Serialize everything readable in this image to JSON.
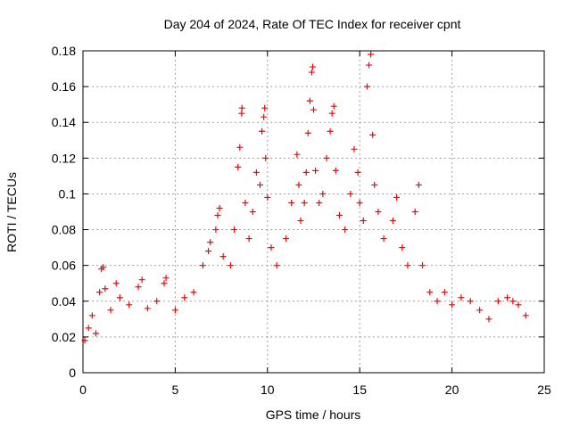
{
  "chart_data": {
    "type": "scatter",
    "title": "Day 204 of 2024, Rate Of TEC Index for receiver cpnt",
    "xlabel": "GPS time / hours",
    "ylabel": "ROTI / TECUs",
    "xlim": [
      0,
      25
    ],
    "ylim": [
      0,
      0.18
    ],
    "x_ticks": [
      0,
      5,
      10,
      15,
      20,
      25
    ],
    "x_tick_labels": [
      "0",
      "5",
      "10",
      "15",
      "20",
      "25"
    ],
    "y_ticks": [
      0,
      0.02,
      0.04,
      0.06,
      0.08,
      0.1,
      0.12,
      0.14,
      0.16,
      0.18
    ],
    "y_tick_labels": [
      "0",
      "0.02",
      "0.04",
      "0.06",
      "0.08",
      "0.1",
      "0.12",
      "0.14",
      "0.16",
      "0.18"
    ],
    "grid": true,
    "marker": "+",
    "series_color": "#ff0000",
    "series": [
      {
        "name": "ROTI",
        "points": [
          [
            0.1,
            0.018
          ],
          [
            0.3,
            0.025
          ],
          [
            0.5,
            0.032
          ],
          [
            0.7,
            0.022
          ],
          [
            0.9,
            0.045
          ],
          [
            1.0,
            0.058
          ],
          [
            1.1,
            0.059
          ],
          [
            1.2,
            0.047
          ],
          [
            1.5,
            0.035
          ],
          [
            1.8,
            0.05
          ],
          [
            2.0,
            0.042
          ],
          [
            2.5,
            0.038
          ],
          [
            3.0,
            0.048
          ],
          [
            3.2,
            0.052
          ],
          [
            3.5,
            0.036
          ],
          [
            4.0,
            0.04
          ],
          [
            4.4,
            0.05
          ],
          [
            4.5,
            0.053
          ],
          [
            5.0,
            0.035
          ],
          [
            5.5,
            0.042
          ],
          [
            6.0,
            0.045
          ],
          [
            6.5,
            0.06
          ],
          [
            6.8,
            0.068
          ],
          [
            6.9,
            0.073
          ],
          [
            7.2,
            0.08
          ],
          [
            7.3,
            0.088
          ],
          [
            7.4,
            0.092
          ],
          [
            7.6,
            0.065
          ],
          [
            8.0,
            0.06
          ],
          [
            8.2,
            0.08
          ],
          [
            8.4,
            0.115
          ],
          [
            8.5,
            0.126
          ],
          [
            8.6,
            0.145
          ],
          [
            8.62,
            0.148
          ],
          [
            8.8,
            0.095
          ],
          [
            9.0,
            0.075
          ],
          [
            9.2,
            0.09
          ],
          [
            9.4,
            0.112
          ],
          [
            9.6,
            0.105
          ],
          [
            9.7,
            0.135
          ],
          [
            9.8,
            0.143
          ],
          [
            9.85,
            0.148
          ],
          [
            9.9,
            0.12
          ],
          [
            10.0,
            0.098
          ],
          [
            10.2,
            0.07
          ],
          [
            10.5,
            0.06
          ],
          [
            11.0,
            0.075
          ],
          [
            11.3,
            0.095
          ],
          [
            11.6,
            0.122
          ],
          [
            11.7,
            0.105
          ],
          [
            11.8,
            0.085
          ],
          [
            12.0,
            0.095
          ],
          [
            12.1,
            0.112
          ],
          [
            12.2,
            0.134
          ],
          [
            12.3,
            0.152
          ],
          [
            12.4,
            0.168
          ],
          [
            12.45,
            0.171
          ],
          [
            12.5,
            0.147
          ],
          [
            12.6,
            0.113
          ],
          [
            12.8,
            0.095
          ],
          [
            13.0,
            0.1
          ],
          [
            13.2,
            0.12
          ],
          [
            13.4,
            0.135
          ],
          [
            13.5,
            0.145
          ],
          [
            13.6,
            0.149
          ],
          [
            13.7,
            0.113
          ],
          [
            13.9,
            0.088
          ],
          [
            14.2,
            0.08
          ],
          [
            14.5,
            0.1
          ],
          [
            14.7,
            0.125
          ],
          [
            14.9,
            0.112
          ],
          [
            15.0,
            0.095
          ],
          [
            15.2,
            0.085
          ],
          [
            15.4,
            0.16
          ],
          [
            15.5,
            0.172
          ],
          [
            15.6,
            0.178
          ],
          [
            15.7,
            0.133
          ],
          [
            15.8,
            0.105
          ],
          [
            16.0,
            0.09
          ],
          [
            16.3,
            0.075
          ],
          [
            16.8,
            0.085
          ],
          [
            17.0,
            0.098
          ],
          [
            17.3,
            0.07
          ],
          [
            17.6,
            0.06
          ],
          [
            18.0,
            0.09
          ],
          [
            18.2,
            0.105
          ],
          [
            18.4,
            0.06
          ],
          [
            18.8,
            0.045
          ],
          [
            19.2,
            0.04
          ],
          [
            19.6,
            0.045
          ],
          [
            20.0,
            0.038
          ],
          [
            20.5,
            0.042
          ],
          [
            21.0,
            0.04
          ],
          [
            21.5,
            0.035
          ],
          [
            22.0,
            0.03
          ],
          [
            22.5,
            0.04
          ],
          [
            23.0,
            0.042
          ],
          [
            23.3,
            0.04
          ],
          [
            23.6,
            0.038
          ],
          [
            24.0,
            0.032
          ]
        ]
      }
    ]
  }
}
